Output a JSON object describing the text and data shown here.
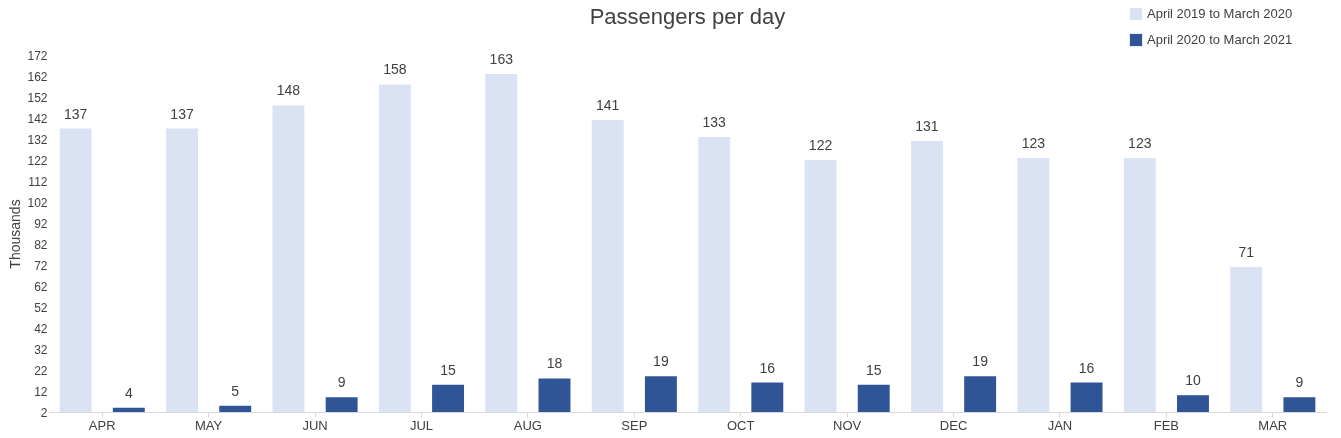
{
  "chart_data": {
    "type": "bar",
    "title": "Passengers per day",
    "ylabel": "Thousands",
    "categories": [
      "APR",
      "MAY",
      "JUN",
      "JUL",
      "AUG",
      "SEP",
      "OCT",
      "NOV",
      "DEC",
      "JAN",
      "FEB",
      "MAR"
    ],
    "series": [
      {
        "name": "April 2019 to March 2020",
        "color": "#dae3f3",
        "values": [
          137,
          137,
          148,
          158,
          163,
          141,
          133,
          122,
          131,
          123,
          123,
          71
        ]
      },
      {
        "name": "April 2020 to March 2021",
        "color": "#2f5597",
        "values": [
          4,
          5,
          9,
          15,
          18,
          19,
          16,
          15,
          19,
          16,
          10,
          9
        ]
      }
    ],
    "ylim": [
      2,
      172
    ],
    "yticks": [
      2,
      12,
      22,
      32,
      42,
      52,
      62,
      72,
      82,
      92,
      102,
      112,
      122,
      132,
      142,
      152,
      162,
      172
    ],
    "grid": false,
    "legend": "top right",
    "data_labels": true
  }
}
